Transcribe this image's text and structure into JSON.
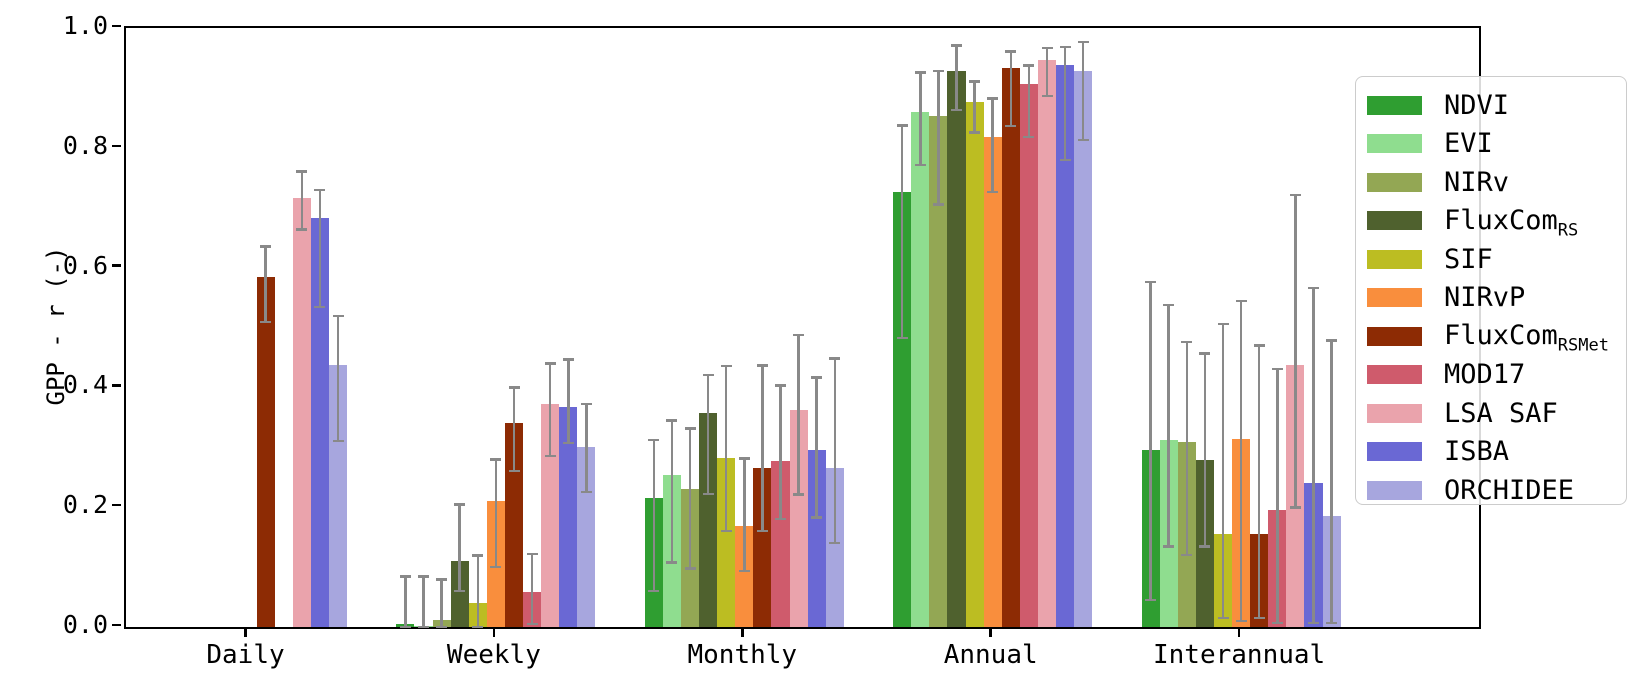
{
  "figure": {
    "background": "#ffffff",
    "axis_color": "#000000",
    "errorbar_color": "#898989",
    "ylabel": "GPP - r (-)"
  },
  "chart_data": {
    "type": "bar",
    "title": "",
    "xlabel": "",
    "ylabel": "GPP - r (-)",
    "ylim": [
      0.0,
      1.0
    ],
    "yticks": [
      0.0,
      0.2,
      0.4,
      0.6,
      0.8,
      1.0
    ],
    "ytick_labels": [
      "0.0",
      "0.2",
      "0.4",
      "0.6",
      "0.8",
      "1.0"
    ],
    "grid": false,
    "error_bars": true,
    "legend_position": "upper right",
    "categories": [
      "Daily",
      "Weekly",
      "Monthly",
      "Annual",
      "Interannual"
    ],
    "series": [
      {
        "name": "NDVI",
        "sub": "",
        "color": "#2f9e31",
        "values": [
          null,
          0.005,
          0.215,
          0.727,
          0.296
        ],
        "err_low": [
          null,
          0.0,
          0.06,
          0.482,
          0.045
        ],
        "err_high": [
          null,
          0.085,
          0.313,
          0.838,
          0.576
        ]
      },
      {
        "name": "EVI",
        "sub": "",
        "color": "#8fdd8f",
        "values": [
          null,
          0.002,
          0.254,
          0.86,
          0.312
        ],
        "err_low": [
          null,
          0.0,
          0.107,
          0.771,
          0.134
        ],
        "err_high": [
          null,
          0.085,
          0.345,
          0.926,
          0.538
        ]
      },
      {
        "name": "NIRv",
        "sub": "",
        "color": "#93a754",
        "values": [
          null,
          0.012,
          0.23,
          0.853,
          0.309
        ],
        "err_low": [
          null,
          0.0,
          0.097,
          0.705,
          0.12
        ],
        "err_high": [
          null,
          0.08,
          0.332,
          0.929,
          0.476
        ]
      },
      {
        "name": "FluxCom",
        "sub": "RS",
        "color": "#4f612e",
        "values": [
          null,
          0.11,
          0.357,
          0.928,
          0.278
        ],
        "err_low": [
          null,
          0.06,
          0.222,
          0.863,
          0.134
        ],
        "err_high": [
          null,
          0.205,
          0.421,
          0.971,
          0.457
        ]
      },
      {
        "name": "SIF",
        "sub": "",
        "color": "#bcbd22",
        "values": [
          null,
          0.04,
          0.282,
          0.876,
          0.156
        ],
        "err_low": [
          null,
          0.0,
          0.16,
          0.825,
          0.015
        ],
        "err_high": [
          null,
          0.12,
          0.436,
          0.911,
          0.506
        ]
      },
      {
        "name": "NIRvP",
        "sub": "",
        "color": "#f98e3d",
        "values": [
          null,
          0.21,
          0.169,
          0.818,
          0.314
        ],
        "err_low": [
          null,
          0.1,
          0.093,
          0.726,
          0.01
        ],
        "err_high": [
          null,
          0.28,
          0.282,
          0.883,
          0.545
        ]
      },
      {
        "name": "FluxCom",
        "sub": "RSMet",
        "color": "#8d2b04",
        "values": [
          0.585,
          0.34,
          0.266,
          0.933,
          0.156
        ],
        "err_low": [
          0.509,
          0.26,
          0.16,
          0.836,
          0.015
        ],
        "err_high": [
          0.636,
          0.4,
          0.437,
          0.961,
          0.47
        ]
      },
      {
        "name": "MOD17",
        "sub": "",
        "color": "#cf5b6c",
        "values": [
          null,
          0.058,
          0.277,
          0.906,
          0.196
        ],
        "err_low": [
          null,
          0.005,
          0.18,
          0.818,
          0.006
        ],
        "err_high": [
          null,
          0.122,
          0.404,
          0.938,
          0.431
        ]
      },
      {
        "name": "LSA SAF",
        "sub": "",
        "color": "#eaa3ac",
        "values": [
          0.716,
          0.372,
          0.363,
          0.946,
          0.438
        ],
        "err_low": [
          0.663,
          0.285,
          0.221,
          0.886,
          0.199
        ],
        "err_high": [
          0.761,
          0.44,
          0.488,
          0.967,
          0.722
        ]
      },
      {
        "name": "ISBA",
        "sub": "",
        "color": "#6a68d4",
        "values": [
          0.683,
          0.368,
          0.296,
          0.939,
          0.241
        ],
        "err_low": [
          0.534,
          0.307,
          0.182,
          0.779,
          0.006
        ],
        "err_high": [
          0.73,
          0.447,
          0.417,
          0.969,
          0.566
        ]
      },
      {
        "name": "ORCHIDEE",
        "sub": "",
        "color": "#a7a6de",
        "values": [
          0.437,
          0.3,
          0.266,
          0.928,
          0.185
        ],
        "err_low": [
          0.31,
          0.225,
          0.14,
          0.813,
          0.006
        ],
        "err_high": [
          0.52,
          0.373,
          0.449,
          0.977,
          0.479
        ]
      }
    ]
  }
}
